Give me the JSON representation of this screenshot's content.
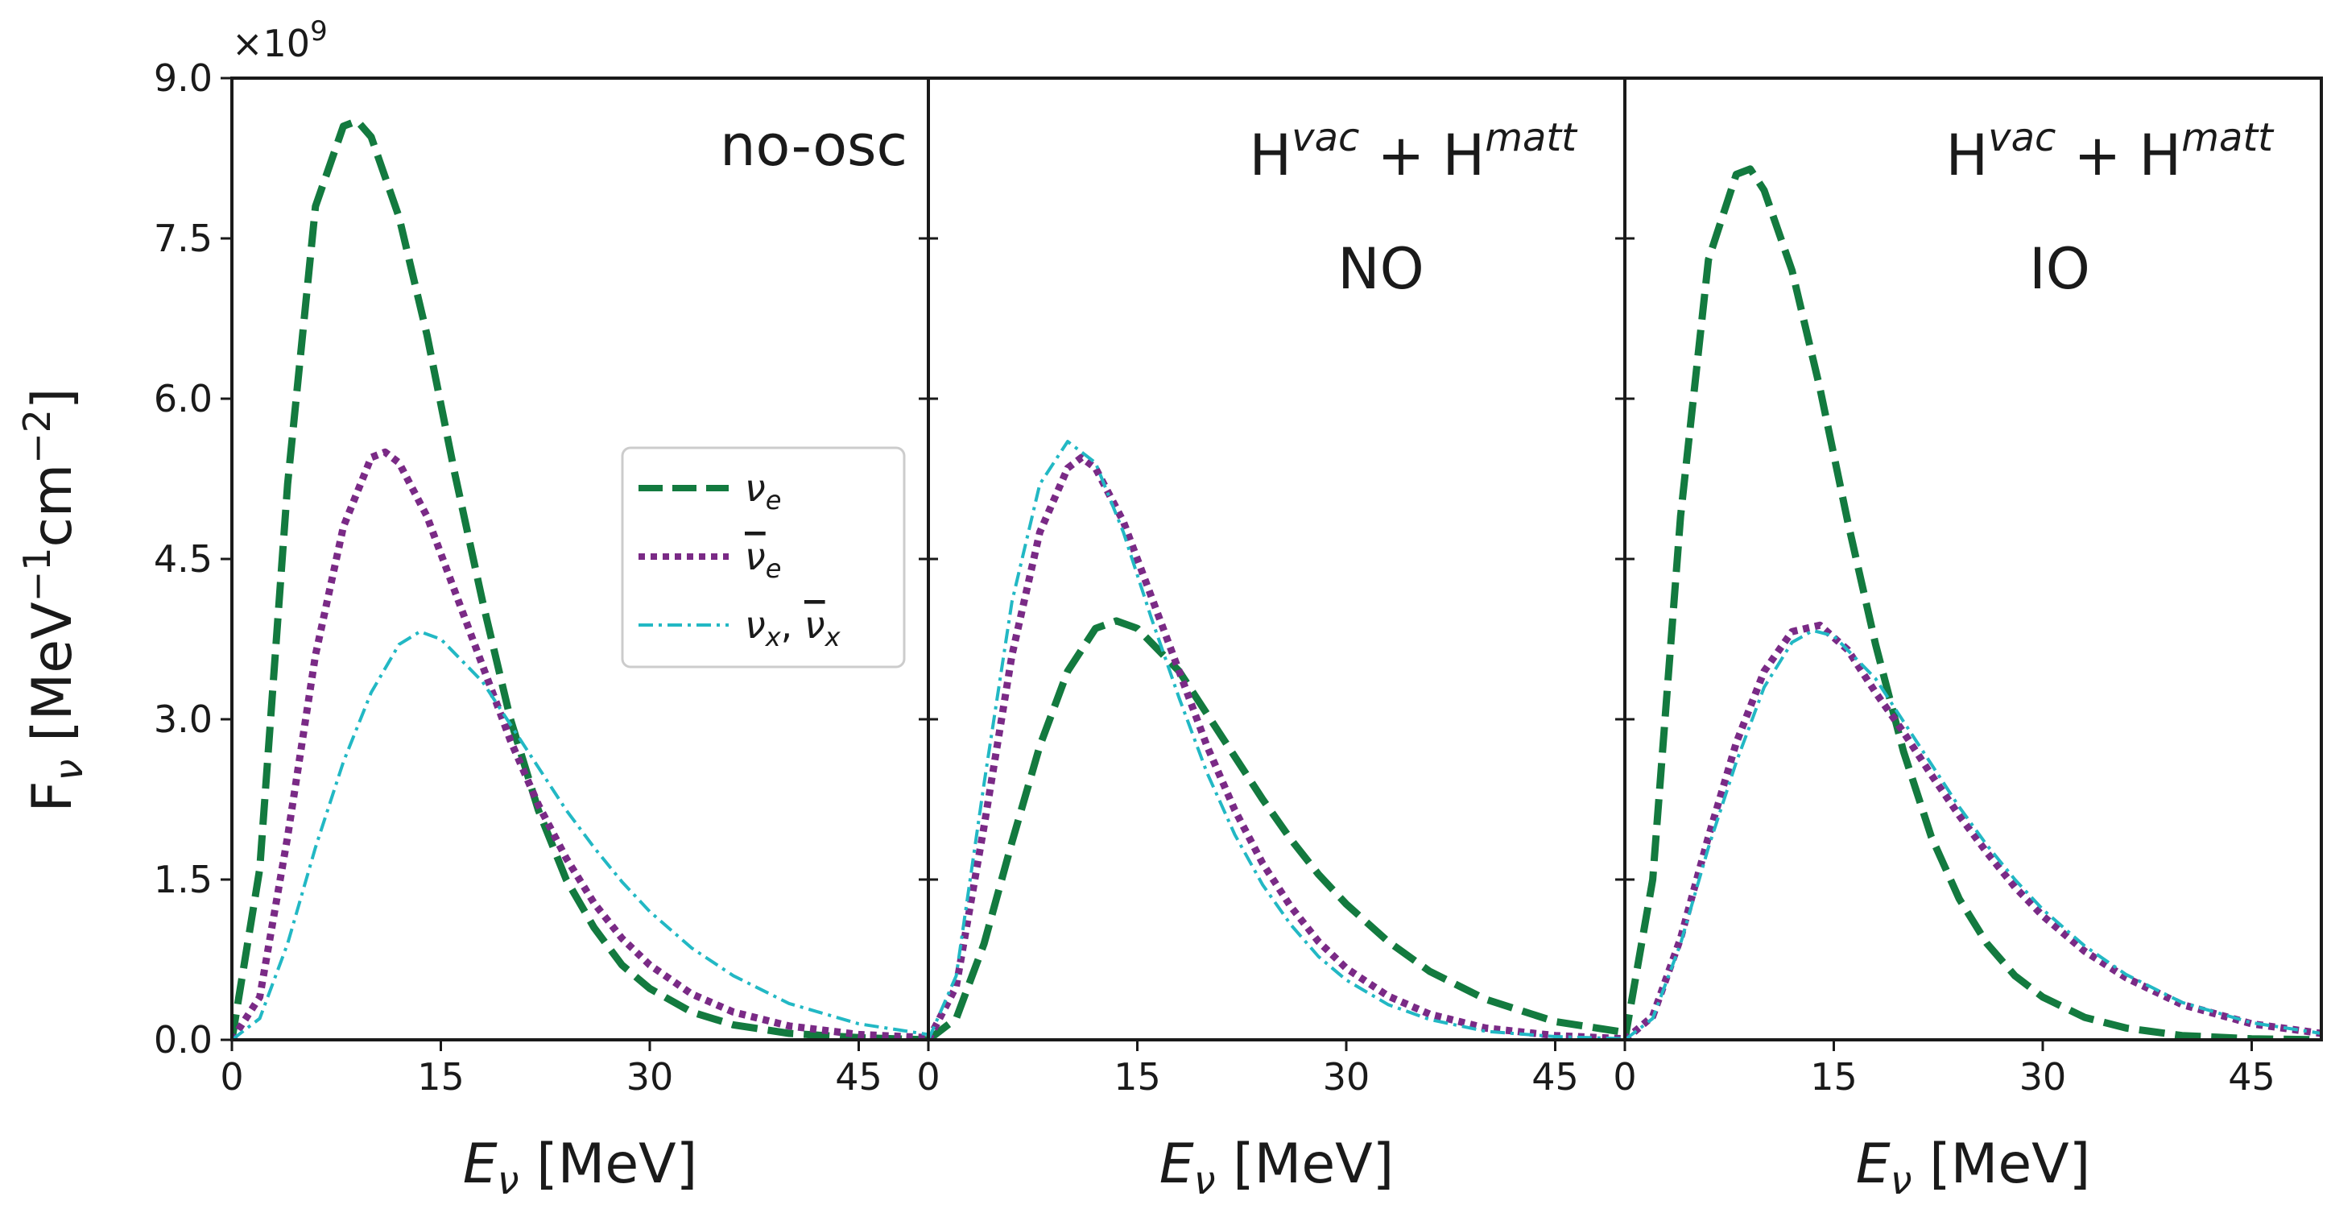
{
  "chart_data": {
    "type": "line",
    "ylabel_parts": {
      "F": "F",
      "nu": "ν",
      "open": " [MeV",
      "exp1": "−1",
      "cm": "cm",
      "exp2": "−2",
      "close": "]"
    },
    "y_multiplier": {
      "times": "×10",
      "exponent": "9"
    },
    "xlabel_parts": {
      "E": "E",
      "nu": "ν",
      "unit": " [MeV]"
    },
    "xlim": [
      0,
      50
    ],
    "ylim": [
      0,
      9.0
    ],
    "xticks": [
      "0",
      "15",
      "30",
      "45"
    ],
    "yticks": [
      "0.0",
      "1.5",
      "3.0",
      "4.5",
      "6.0",
      "7.5",
      "9.0"
    ],
    "colors": {
      "nu_e": "#137a3f",
      "nubar_e": "#7a2a86",
      "nu_x": "#22b8c4"
    },
    "legend": {
      "location": "center-right of first panel",
      "entries": [
        {
          "key": "nu_e",
          "base": "ν",
          "sub": "e",
          "bar": false
        },
        {
          "key": "nubar_e",
          "base": "ν",
          "sub": "e",
          "bar": true
        },
        {
          "key": "nu_x",
          "base": "ν",
          "sub": "x",
          "sep": ", ",
          "base2": "ν",
          "sub2": "x",
          "bar2": true
        }
      ]
    },
    "panels": [
      {
        "id": "no-osc",
        "label_line1_plain": "no-osc",
        "series": [
          {
            "key": "nu_e",
            "x": [
              0,
              2,
              4,
              6,
              8,
              9,
              10,
              12,
              14,
              16,
              18,
              20,
              22,
              24,
              26,
              28,
              30,
              33,
              36,
              40,
              45,
              50
            ],
            "y": [
              0,
              1.6,
              5.2,
              7.8,
              8.55,
              8.6,
              8.45,
              7.7,
              6.6,
              5.3,
              4.1,
              3.0,
              2.15,
              1.5,
              1.05,
              0.7,
              0.48,
              0.26,
              0.14,
              0.06,
              0.02,
              0.0
            ]
          },
          {
            "key": "nubar_e",
            "x": [
              0,
              2,
              4,
              6,
              8,
              10,
              11,
              12,
              14,
              16,
              18,
              20,
              22,
              24,
              26,
              28,
              30,
              33,
              36,
              40,
              45,
              50
            ],
            "y": [
              0,
              0.4,
              1.9,
              3.6,
              4.8,
              5.45,
              5.5,
              5.4,
              4.9,
              4.2,
              3.5,
              2.8,
              2.2,
              1.7,
              1.28,
              0.95,
              0.7,
              0.43,
              0.26,
              0.13,
              0.05,
              0.02
            ]
          },
          {
            "key": "nu_x",
            "x": [
              0,
              2,
              4,
              6,
              8,
              10,
              12,
              13.5,
              15,
              18,
              20,
              22,
              24,
              26,
              28,
              30,
              33,
              36,
              40,
              45,
              50
            ],
            "y": [
              0,
              0.2,
              0.9,
              1.8,
              2.6,
              3.25,
              3.7,
              3.82,
              3.75,
              3.35,
              2.95,
              2.55,
              2.15,
              1.8,
              1.48,
              1.2,
              0.86,
              0.6,
              0.34,
              0.15,
              0.05
            ]
          }
        ]
      },
      {
        "id": "no",
        "label_h1": "H",
        "label_sup1": "vac",
        "label_plus": " + ",
        "label_h2": "H",
        "label_sup2": "matt",
        "label_line2": "NO",
        "series": [
          {
            "key": "nu_e",
            "x": [
              0,
              2,
              4,
              6,
              8,
              10,
              12,
              13.5,
              15,
              18,
              20,
              22,
              24,
              26,
              28,
              30,
              33,
              36,
              40,
              45,
              50
            ],
            "y": [
              0,
              0.2,
              0.9,
              1.85,
              2.75,
              3.45,
              3.85,
              3.92,
              3.85,
              3.45,
              3.05,
              2.65,
              2.25,
              1.88,
              1.55,
              1.27,
              0.92,
              0.64,
              0.38,
              0.17,
              0.07
            ]
          },
          {
            "key": "nubar_e",
            "x": [
              0,
              2,
              4,
              6,
              8,
              10,
              11,
              12,
              14,
              16,
              18,
              20,
              22,
              24,
              26,
              28,
              30,
              33,
              36,
              40,
              45,
              50
            ],
            "y": [
              0,
              0.5,
              2.0,
              3.6,
              4.75,
              5.35,
              5.45,
              5.35,
              4.85,
              4.15,
              3.45,
              2.75,
              2.15,
              1.65,
              1.25,
              0.92,
              0.67,
              0.41,
              0.24,
              0.11,
              0.04,
              0.01
            ]
          },
          {
            "key": "nu_x",
            "x": [
              0,
              2,
              4,
              6,
              8,
              10,
              12,
              14,
              16,
              18,
              20,
              22,
              24,
              26,
              28,
              30,
              33,
              36,
              40,
              45,
              50
            ],
            "y": [
              0,
              0.6,
              2.4,
              4.1,
              5.2,
              5.6,
              5.4,
              4.75,
              3.95,
              3.2,
              2.5,
              1.92,
              1.45,
              1.08,
              0.78,
              0.56,
              0.33,
              0.19,
              0.08,
              0.03,
              0.01
            ]
          }
        ]
      },
      {
        "id": "io",
        "label_h1": "H",
        "label_sup1": "vac",
        "label_plus": " + ",
        "label_h2": "H",
        "label_sup2": "matt",
        "label_line2": "IO",
        "series": [
          {
            "key": "nu_e",
            "x": [
              0,
              2,
              4,
              6,
              8,
              9,
              10,
              12,
              14,
              16,
              18,
              20,
              22,
              24,
              26,
              28,
              30,
              33,
              36,
              40,
              45,
              50
            ],
            "y": [
              0,
              1.5,
              4.9,
              7.3,
              8.1,
              8.15,
              7.95,
              7.2,
              6.1,
              4.85,
              3.7,
              2.7,
              1.9,
              1.32,
              0.9,
              0.6,
              0.4,
              0.21,
              0.11,
              0.04,
              0.01,
              0.0
            ]
          },
          {
            "key": "nubar_e",
            "x": [
              0,
              2,
              4,
              6,
              8,
              10,
              12,
              14,
              16,
              18,
              20,
              22,
              24,
              26,
              28,
              30,
              33,
              36,
              40,
              45,
              50
            ],
            "y": [
              0,
              0.22,
              0.95,
              1.9,
              2.78,
              3.45,
              3.82,
              3.88,
              3.65,
              3.25,
              2.88,
              2.48,
              2.1,
              1.75,
              1.43,
              1.16,
              0.83,
              0.58,
              0.33,
              0.15,
              0.06
            ]
          },
          {
            "key": "nu_x",
            "x": [
              0,
              2,
              4,
              6,
              8,
              10,
              12,
              13.5,
              15,
              18,
              20,
              22,
              24,
              26,
              28,
              30,
              33,
              36,
              40,
              45,
              50
            ],
            "y": [
              0,
              0.2,
              0.9,
              1.8,
              2.6,
              3.3,
              3.72,
              3.83,
              3.78,
              3.38,
              2.98,
              2.58,
              2.18,
              1.82,
              1.5,
              1.22,
              0.88,
              0.61,
              0.35,
              0.16,
              0.06
            ]
          }
        ]
      }
    ]
  }
}
